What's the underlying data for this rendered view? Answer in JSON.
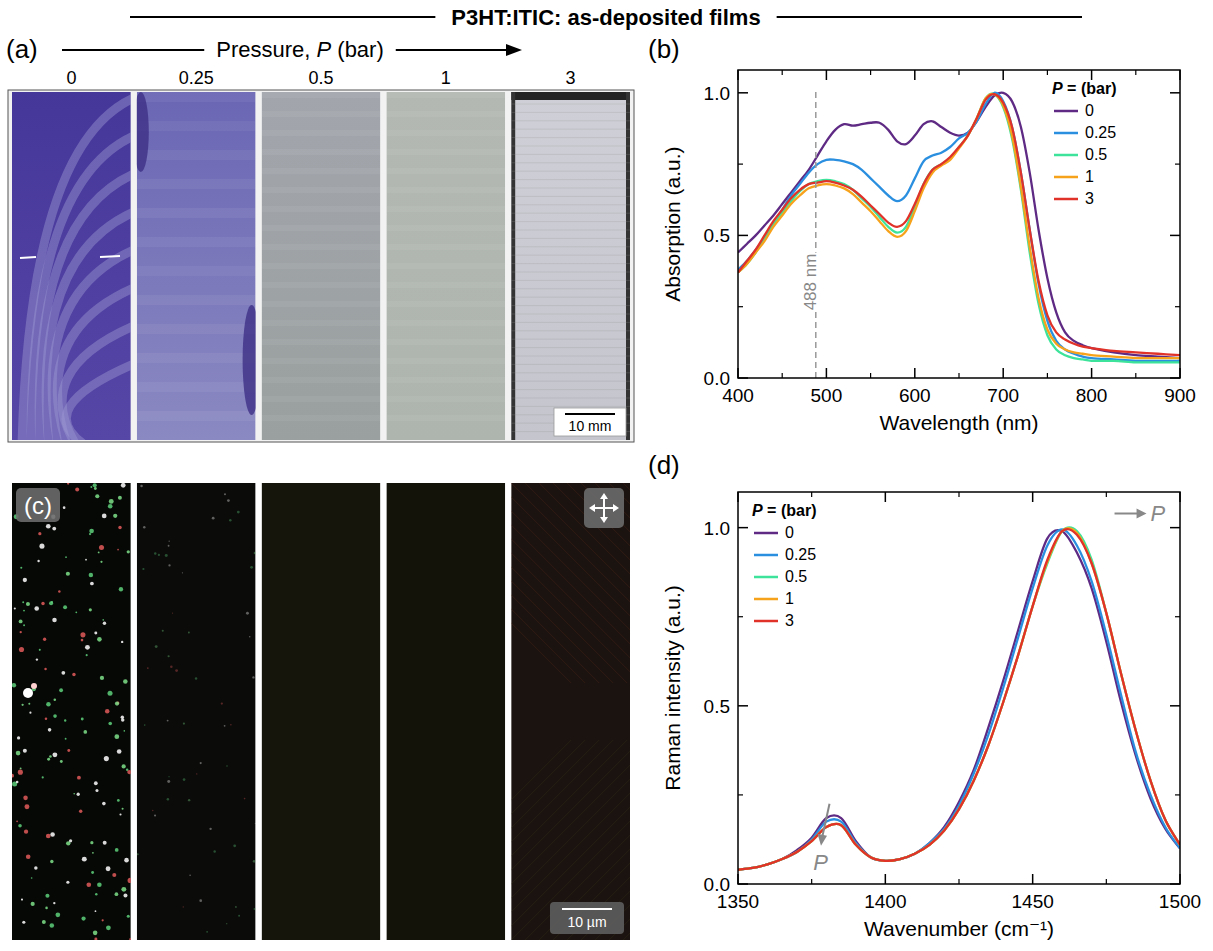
{
  "title": "P3HT:ITIC: as-deposited films",
  "photo_panel": {
    "panel_label": "(a)",
    "axis_label": "Pressure, P (bar)",
    "labels": [
      0,
      0.25,
      0.5,
      1,
      3
    ],
    "scale_bar": "10 mm"
  },
  "micrograph_panel": {
    "panel_label": "(c)",
    "scale_bar": "10 µm"
  },
  "chart_data": [
    {
      "type": "line",
      "panel_label": "(b)",
      "x_label": "Wavelength (nm)",
      "y_label": "Absorption (a.u.)",
      "legend_title": "P = (bar)",
      "legend": "upper right",
      "xlim": [
        400,
        900
      ],
      "ylim": [
        0,
        1.08
      ],
      "xticks": [
        400,
        500,
        600,
        700,
        800,
        900
      ],
      "yticks": [
        {
          "value": 0,
          "label": "0.0"
        },
        {
          "value": 0.5,
          "label": "0.5"
        },
        {
          "value": 1,
          "label": "1.0"
        }
      ],
      "x": [
        400,
        410,
        420,
        430,
        440,
        450,
        460,
        470,
        480,
        490,
        500,
        510,
        520,
        530,
        540,
        550,
        560,
        570,
        580,
        590,
        600,
        610,
        620,
        630,
        640,
        650,
        660,
        670,
        680,
        690,
        700,
        710,
        720,
        730,
        740,
        750,
        760,
        770,
        780,
        790,
        800,
        825,
        850,
        875,
        900
      ],
      "series": [
        {
          "name": "0",
          "color": "#5e2a84",
          "values": [
            0.44,
            0.47,
            0.5,
            0.535,
            0.57,
            0.61,
            0.65,
            0.69,
            0.73,
            0.78,
            0.83,
            0.87,
            0.89,
            0.885,
            0.89,
            0.895,
            0.895,
            0.87,
            0.83,
            0.82,
            0.85,
            0.89,
            0.9,
            0.88,
            0.86,
            0.85,
            0.86,
            0.9,
            0.95,
            0.99,
            1.0,
            0.97,
            0.88,
            0.72,
            0.52,
            0.35,
            0.23,
            0.16,
            0.13,
            0.115,
            0.105,
            0.09,
            0.08,
            0.075,
            0.07
          ]
        },
        {
          "name": "0.25",
          "color": "#2b8fe0",
          "values": [
            0.38,
            0.41,
            0.45,
            0.49,
            0.54,
            0.59,
            0.64,
            0.68,
            0.72,
            0.75,
            0.765,
            0.765,
            0.76,
            0.75,
            0.73,
            0.7,
            0.67,
            0.64,
            0.62,
            0.64,
            0.7,
            0.76,
            0.78,
            0.79,
            0.81,
            0.84,
            0.86,
            0.9,
            0.96,
            1.0,
            0.97,
            0.88,
            0.72,
            0.52,
            0.33,
            0.2,
            0.13,
            0.1,
            0.085,
            0.075,
            0.07,
            0.065,
            0.06,
            0.06,
            0.06
          ]
        },
        {
          "name": "0.5",
          "color": "#3de39a",
          "values": [
            0.37,
            0.4,
            0.44,
            0.49,
            0.54,
            0.58,
            0.62,
            0.655,
            0.68,
            0.69,
            0.695,
            0.69,
            0.68,
            0.66,
            0.63,
            0.6,
            0.565,
            0.53,
            0.51,
            0.53,
            0.6,
            0.68,
            0.73,
            0.75,
            0.77,
            0.81,
            0.85,
            0.91,
            0.98,
            0.995,
            0.95,
            0.84,
            0.66,
            0.44,
            0.26,
            0.15,
            0.1,
            0.08,
            0.07,
            0.065,
            0.06,
            0.06,
            0.055,
            0.055,
            0.055
          ]
        },
        {
          "name": "1",
          "color": "#f7a21b",
          "values": [
            0.37,
            0.4,
            0.44,
            0.48,
            0.53,
            0.57,
            0.61,
            0.64,
            0.665,
            0.675,
            0.68,
            0.675,
            0.665,
            0.645,
            0.615,
            0.585,
            0.55,
            0.515,
            0.495,
            0.515,
            0.585,
            0.665,
            0.72,
            0.745,
            0.765,
            0.805,
            0.85,
            0.91,
            0.98,
            0.995,
            0.955,
            0.85,
            0.67,
            0.46,
            0.28,
            0.17,
            0.12,
            0.1,
            0.09,
            0.085,
            0.08,
            0.075,
            0.07,
            0.07,
            0.07
          ]
        },
        {
          "name": "3",
          "color": "#e03228",
          "values": [
            0.37,
            0.41,
            0.45,
            0.5,
            0.55,
            0.59,
            0.63,
            0.66,
            0.68,
            0.685,
            0.69,
            0.685,
            0.675,
            0.66,
            0.635,
            0.605,
            0.575,
            0.545,
            0.53,
            0.55,
            0.61,
            0.68,
            0.73,
            0.75,
            0.775,
            0.81,
            0.85,
            0.91,
            0.975,
            0.995,
            0.965,
            0.88,
            0.72,
            0.52,
            0.34,
            0.22,
            0.16,
            0.135,
            0.12,
            0.11,
            0.105,
            0.095,
            0.09,
            0.085,
            0.08
          ]
        }
      ],
      "annotations": [
        {
          "x": 488,
          "text": "488 nm"
        }
      ]
    },
    {
      "type": "line",
      "panel_label": "(d)",
      "x_label": "Wavenumber (cm⁻¹)",
      "y_label": "Raman intensity (a.u.)",
      "legend_title": "P = (bar)",
      "legend": "upper left",
      "xlim": [
        1350,
        1500
      ],
      "ylim": [
        0,
        1.1
      ],
      "xticks": [
        1350,
        1400,
        1450,
        1500
      ],
      "yticks": [
        {
          "value": 0,
          "label": "0.0"
        },
        {
          "value": 0.5,
          "label": "0.5"
        },
        {
          "value": 1,
          "label": "1.0"
        }
      ],
      "x": [
        1350,
        1355,
        1360,
        1365,
        1370,
        1375,
        1380,
        1385,
        1390,
        1395,
        1400,
        1405,
        1410,
        1415,
        1420,
        1425,
        1430,
        1435,
        1440,
        1445,
        1450,
        1455,
        1460,
        1465,
        1470,
        1475,
        1480,
        1485,
        1490,
        1495,
        1500
      ],
      "series": [
        {
          "name": "0",
          "color": "#5e2a84",
          "values": [
            0.04,
            0.045,
            0.055,
            0.07,
            0.095,
            0.13,
            0.185,
            0.185,
            0.12,
            0.075,
            0.065,
            0.07,
            0.085,
            0.115,
            0.16,
            0.23,
            0.32,
            0.44,
            0.57,
            0.71,
            0.85,
            0.97,
            0.99,
            0.93,
            0.83,
            0.68,
            0.51,
            0.36,
            0.24,
            0.155,
            0.1
          ]
        },
        {
          "name": "0.25",
          "color": "#2b8fe0",
          "values": [
            0.04,
            0.045,
            0.055,
            0.07,
            0.09,
            0.125,
            0.175,
            0.175,
            0.115,
            0.075,
            0.065,
            0.07,
            0.085,
            0.115,
            0.155,
            0.22,
            0.31,
            0.42,
            0.55,
            0.69,
            0.83,
            0.95,
            0.995,
            0.95,
            0.85,
            0.7,
            0.53,
            0.37,
            0.25,
            0.16,
            0.1
          ]
        },
        {
          "name": "0.5",
          "color": "#3de39a",
          "values": [
            0.04,
            0.045,
            0.055,
            0.07,
            0.09,
            0.12,
            0.16,
            0.165,
            0.11,
            0.075,
            0.065,
            0.07,
            0.085,
            0.11,
            0.15,
            0.21,
            0.29,
            0.39,
            0.51,
            0.64,
            0.78,
            0.9,
            0.99,
            0.99,
            0.91,
            0.76,
            0.59,
            0.43,
            0.29,
            0.18,
            0.11
          ]
        },
        {
          "name": "1",
          "color": "#f7a21b",
          "values": [
            0.04,
            0.045,
            0.055,
            0.07,
            0.09,
            0.12,
            0.16,
            0.165,
            0.11,
            0.075,
            0.065,
            0.07,
            0.085,
            0.11,
            0.15,
            0.21,
            0.29,
            0.39,
            0.51,
            0.64,
            0.78,
            0.905,
            0.99,
            0.985,
            0.9,
            0.76,
            0.59,
            0.43,
            0.29,
            0.18,
            0.11
          ]
        },
        {
          "name": "3",
          "color": "#e03228",
          "values": [
            0.04,
            0.045,
            0.055,
            0.07,
            0.09,
            0.12,
            0.16,
            0.165,
            0.11,
            0.075,
            0.065,
            0.07,
            0.085,
            0.11,
            0.15,
            0.21,
            0.29,
            0.39,
            0.51,
            0.64,
            0.78,
            0.91,
            0.99,
            0.98,
            0.9,
            0.76,
            0.59,
            0.43,
            0.29,
            0.18,
            0.11
          ]
        }
      ],
      "annotations": [
        {
          "x": 1490,
          "y": 1.02,
          "text": "P",
          "arrow": "right"
        },
        {
          "x": 1378,
          "y": 0.04,
          "text": "P",
          "arrow": "down"
        }
      ]
    }
  ]
}
